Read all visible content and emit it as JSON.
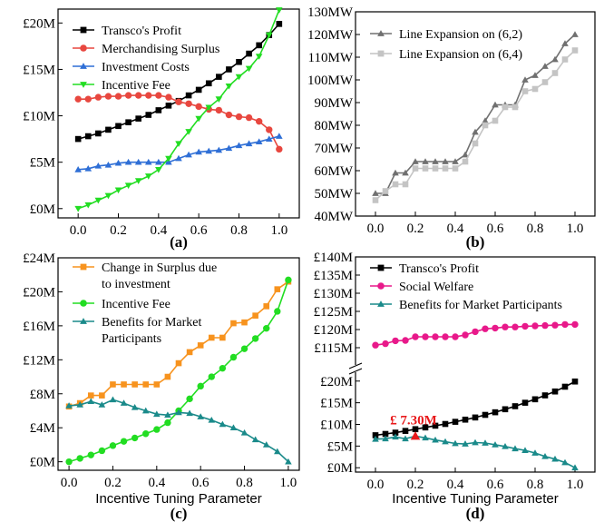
{
  "chart_data": [
    {
      "id": "a",
      "type": "line",
      "sublabel": "(a)",
      "xlabel": "",
      "ylabel": "",
      "xlim": [
        -0.1,
        1.1
      ],
      "ylim": [
        -1,
        21.5
      ],
      "x_ticks": [
        "0.0",
        "0.2",
        "0.4",
        "0.6",
        "0.8",
        "1.0"
      ],
      "y_tick_values": [
        0,
        5,
        10,
        15,
        20
      ],
      "y_ticks": [
        "£0M",
        "£5M",
        "£10M",
        "£15M",
        "£20M"
      ],
      "legend_position": "top-left",
      "x": [
        0,
        0.05,
        0.1,
        0.15,
        0.2,
        0.25,
        0.3,
        0.35,
        0.4,
        0.45,
        0.5,
        0.55,
        0.6,
        0.65,
        0.7,
        0.75,
        0.8,
        0.85,
        0.9,
        0.95,
        1.0
      ],
      "series": [
        {
          "name": "Transco's Profit",
          "color": "#000000",
          "marker": "square",
          "values": [
            7.5,
            7.8,
            8.1,
            8.5,
            8.9,
            9.3,
            9.7,
            10.1,
            10.6,
            11.1,
            11.6,
            12.2,
            12.8,
            13.5,
            14.2,
            15.0,
            15.8,
            16.7,
            17.6,
            18.7,
            19.9
          ]
        },
        {
          "name": "Merchandising Surplus",
          "color": "#e8473f",
          "marker": "circle",
          "values": [
            11.8,
            11.8,
            12.0,
            12.1,
            12.1,
            12.2,
            12.2,
            12.2,
            12.2,
            12.0,
            11.5,
            11.3,
            11.0,
            10.7,
            10.6,
            10.1,
            9.9,
            9.8,
            9.4,
            8.5,
            6.4
          ]
        },
        {
          "name": "Investment Costs",
          "color": "#2f6fd6",
          "marker": "triangle-up",
          "values": [
            4.2,
            4.3,
            4.6,
            4.7,
            4.9,
            5.0,
            5.0,
            5.0,
            5.0,
            5.0,
            5.4,
            5.8,
            6.1,
            6.2,
            6.3,
            6.5,
            6.8,
            7.0,
            7.2,
            7.5,
            7.8
          ]
        },
        {
          "name": "Incentive Fee",
          "color": "#22dd22",
          "marker": "triangle-down",
          "values": [
            0.0,
            0.4,
            0.9,
            1.4,
            2.0,
            2.5,
            3.0,
            3.5,
            4.2,
            5.4,
            7.0,
            8.3,
            9.7,
            10.9,
            11.8,
            13.2,
            14.2,
            15.1,
            16.4,
            18.7,
            21.4
          ]
        }
      ]
    },
    {
      "id": "b",
      "type": "line",
      "sublabel": "(b)",
      "xlabel": "",
      "ylabel": "",
      "xlim": [
        -0.1,
        1.1
      ],
      "ylim": [
        40,
        130
      ],
      "x_ticks": [
        "0.0",
        "0.2",
        "0.4",
        "0.6",
        "0.8",
        "1.0"
      ],
      "y_tick_values": [
        40,
        50,
        60,
        70,
        80,
        90,
        100,
        110,
        120,
        130
      ],
      "y_ticks": [
        "40MW",
        "50MW",
        "60MW",
        "70MW",
        "80MW",
        "90MW",
        "100MW",
        "110MW",
        "120MW",
        "130MW"
      ],
      "legend_position": "top-left",
      "x": [
        0,
        0.05,
        0.1,
        0.15,
        0.2,
        0.25,
        0.3,
        0.35,
        0.4,
        0.45,
        0.5,
        0.55,
        0.6,
        0.65,
        0.7,
        0.75,
        0.8,
        0.85,
        0.9,
        0.95,
        1.0
      ],
      "series": [
        {
          "name": "Line Expansion on (6,2)",
          "color": "#707070",
          "marker": "triangle-up",
          "values": [
            50,
            50,
            59,
            59,
            64,
            64,
            64,
            64,
            64,
            67,
            77,
            82,
            89,
            89,
            89,
            100,
            102,
            106,
            109,
            116,
            120
          ]
        },
        {
          "name": "Line Expansion on (6,4)",
          "color": "#c4c4c4",
          "marker": "square",
          "values": [
            47,
            51,
            54,
            54,
            61,
            61,
            61,
            61,
            61,
            64,
            72,
            80,
            82,
            88,
            88,
            95,
            96,
            99,
            103,
            109,
            113
          ]
        }
      ]
    },
    {
      "id": "c",
      "type": "line",
      "sublabel": "(c)",
      "xlabel": "Incentive Tuning Parameter",
      "ylabel": "",
      "xlim": [
        -0.05,
        1.05
      ],
      "ylim": [
        -1,
        24
      ],
      "x_ticks": [
        "0.0",
        "0.2",
        "0.4",
        "0.6",
        "0.8",
        "1.0"
      ],
      "y_tick_values": [
        0,
        4,
        8,
        12,
        16,
        20,
        24
      ],
      "y_ticks": [
        "£0M",
        "£4M",
        "£8M",
        "£12M",
        "£16M",
        "£20M",
        "£24M"
      ],
      "legend_position": "top-left",
      "x": [
        0,
        0.05,
        0.1,
        0.15,
        0.2,
        0.25,
        0.3,
        0.35,
        0.4,
        0.45,
        0.5,
        0.55,
        0.6,
        0.65,
        0.7,
        0.75,
        0.8,
        0.85,
        0.9,
        0.95,
        1.0
      ],
      "series": [
        {
          "name": "Change in Surplus due to investment",
          "legend_lines": [
            "Change in Surplus due",
            "to investment"
          ],
          "color": "#f7931e",
          "marker": "square",
          "values": [
            6.5,
            6.9,
            7.8,
            7.8,
            9.1,
            9.1,
            9.1,
            9.1,
            9.1,
            10.0,
            11.6,
            12.9,
            13.7,
            14.6,
            14.6,
            16.3,
            16.4,
            17.2,
            18.3,
            20.3,
            21.2
          ]
        },
        {
          "name": "Incentive Fee",
          "legend_lines": [
            "Incentive Fee"
          ],
          "color": "#22dd22",
          "marker": "circle",
          "values": [
            0.0,
            0.4,
            0.8,
            1.3,
            1.9,
            2.4,
            2.8,
            3.3,
            3.8,
            4.6,
            6.0,
            7.4,
            8.9,
            10.0,
            11.0,
            12.3,
            13.3,
            14.5,
            15.7,
            17.7,
            21.4
          ]
        },
        {
          "name": "Benefits for Market Participants",
          "legend_lines": [
            "Benefits for Market",
            "Participants"
          ],
          "color": "#1a8a8a",
          "marker": "triangle-up",
          "values": [
            6.6,
            6.7,
            7.1,
            6.7,
            7.3,
            6.9,
            6.4,
            6.0,
            5.6,
            5.5,
            5.8,
            5.7,
            5.3,
            4.9,
            4.4,
            4.0,
            3.4,
            2.6,
            2.0,
            1.2,
            0.0
          ]
        }
      ]
    },
    {
      "id": "d",
      "type": "line",
      "sublabel": "(d)",
      "xlabel": "Incentive Tuning Parameter",
      "ylabel": "",
      "xlim": [
        -0.1,
        1.1
      ],
      "axis_break": true,
      "lower_ylim": [
        -1,
        21
      ],
      "upper_ylim": [
        111,
        140
      ],
      "x_ticks": [
        "0.0",
        "0.2",
        "0.4",
        "0.6",
        "0.8",
        "1.0"
      ],
      "lower_y_tick_values": [
        0,
        5,
        10,
        15,
        20
      ],
      "lower_y_ticks": [
        "£0M",
        "£5M",
        "£10M",
        "£15M",
        "£20M"
      ],
      "upper_y_tick_values": [
        115,
        120,
        125,
        130,
        135,
        140
      ],
      "upper_y_ticks": [
        "£115M",
        "£120M",
        "£125M",
        "£130M",
        "£135M",
        "£140M"
      ],
      "legend_position": "top-left",
      "x": [
        0,
        0.05,
        0.1,
        0.15,
        0.2,
        0.25,
        0.3,
        0.35,
        0.4,
        0.45,
        0.5,
        0.55,
        0.6,
        0.65,
        0.7,
        0.75,
        0.8,
        0.85,
        0.9,
        0.95,
        1.0
      ],
      "series": [
        {
          "name": "Transco's Profit",
          "color": "#000000",
          "marker": "square",
          "values": [
            7.5,
            7.8,
            8.1,
            8.5,
            8.9,
            9.3,
            9.7,
            10.1,
            10.6,
            11.1,
            11.6,
            12.2,
            12.8,
            13.5,
            14.2,
            15.0,
            15.8,
            16.7,
            17.6,
            18.7,
            19.9
          ]
        },
        {
          "name": "Social Welfare",
          "color": "#e8198a",
          "marker": "circle",
          "values": [
            115.7,
            116.1,
            116.9,
            117.0,
            118.0,
            118.0,
            118.0,
            118.0,
            118.0,
            118.5,
            119.4,
            120.2,
            120.4,
            120.7,
            120.7,
            120.9,
            121.0,
            121.1,
            121.2,
            121.4,
            121.4
          ]
        },
        {
          "name": "Benefits for Market Participants",
          "color": "#1a8a8a",
          "marker": "triangle-up",
          "values": [
            6.6,
            6.7,
            7.1,
            6.7,
            7.3,
            6.9,
            6.4,
            6.0,
            5.6,
            5.5,
            5.8,
            5.7,
            5.3,
            4.9,
            4.4,
            4.0,
            3.4,
            2.6,
            2.0,
            1.2,
            0.0
          ]
        }
      ],
      "annotation": {
        "text": "£ 7.30M",
        "x": 0.2,
        "y": 7.3,
        "color": "#e8191b"
      }
    }
  ]
}
